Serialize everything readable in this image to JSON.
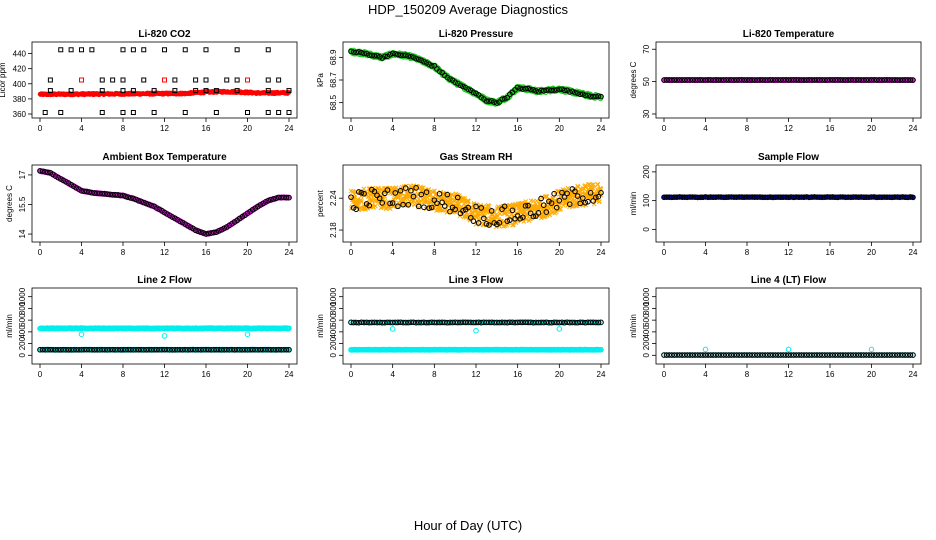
{
  "page": {
    "title": "HDP_150209  Average Diagnostics",
    "xlabel": "Hour of Day (UTC)"
  },
  "colors": {
    "black": "#000000",
    "red": "#ff0000",
    "green": "#22cc22",
    "magenta": "#dd22dd",
    "orange": "#ffaa00",
    "blue": "#0000cc",
    "cyan": "#00eeee"
  },
  "chart_data": [
    {
      "id": "co2",
      "type": "scatter",
      "title": "Li-820 CO2",
      "ylabel": "Licor ppm",
      "xlim": [
        0,
        24
      ],
      "ylim": [
        360,
        450
      ],
      "xticks": [
        0,
        4,
        8,
        12,
        16,
        20,
        24
      ],
      "yticks": [
        360,
        380,
        400,
        420,
        440
      ],
      "ylabels_vertical": false,
      "series": [
        {
          "color": "red",
          "marker": "dot",
          "x": [
            0,
            24
          ],
          "y": [
            386,
            388
          ],
          "dense": true,
          "noise": 1.2,
          "trend": "co2"
        },
        {
          "color": "black",
          "marker": "square",
          "x": [
            2,
            3,
            4,
            5,
            8,
            9,
            10,
            12,
            14,
            16,
            19,
            22
          ],
          "y": [
            445,
            445,
            445,
            445,
            445,
            445,
            445,
            445,
            445,
            445,
            445,
            445
          ]
        },
        {
          "color": "black",
          "marker": "square",
          "x": [
            1,
            4,
            6,
            7,
            8,
            10,
            12,
            13,
            15,
            16,
            18,
            19,
            20,
            22,
            23
          ],
          "y": [
            405,
            405,
            405,
            405,
            405,
            405,
            405,
            405,
            405,
            405,
            405,
            405,
            405,
            405,
            405
          ]
        },
        {
          "color": "black",
          "marker": "square",
          "x": [
            1,
            3,
            6,
            8,
            9,
            11,
            13,
            15,
            16,
            17,
            19,
            22,
            24
          ],
          "y": [
            391,
            391,
            391,
            391,
            391,
            391,
            391,
            391,
            391,
            391,
            391,
            391,
            391
          ]
        },
        {
          "color": "black",
          "marker": "square",
          "x": [
            0.5,
            2,
            6,
            8,
            9,
            11,
            14,
            17,
            20,
            22,
            23,
            24
          ],
          "y": [
            362,
            362,
            362,
            362,
            362,
            362,
            362,
            362,
            362,
            362,
            362,
            362
          ]
        },
        {
          "color": "red",
          "marker": "square",
          "x": [
            4,
            12,
            20
          ],
          "y": [
            405,
            405,
            405
          ]
        }
      ]
    },
    {
      "id": "pressure",
      "type": "scatter",
      "title": "Li-820 Pressure",
      "ylabel": "kPa",
      "xlim": [
        0,
        24
      ],
      "ylim": [
        68.4,
        69.0
      ],
      "xticks": [
        0,
        4,
        8,
        12,
        16,
        20,
        24
      ],
      "yticks": [
        68.5,
        68.7,
        68.9
      ],
      "ylabels_vertical": true,
      "series": [
        {
          "color": "green",
          "marker": "circle",
          "x": [
            0,
            1,
            2,
            3,
            4,
            5,
            6,
            7,
            8,
            9,
            10,
            11,
            12,
            13,
            14,
            15,
            16,
            17,
            18,
            19,
            20,
            21,
            22,
            23,
            24
          ],
          "y": [
            68.95,
            68.94,
            68.92,
            68.9,
            68.93,
            68.92,
            68.9,
            68.86,
            68.82,
            68.74,
            68.68,
            68.63,
            68.58,
            68.52,
            68.5,
            68.55,
            68.63,
            68.62,
            68.6,
            68.61,
            68.62,
            68.6,
            68.58,
            68.56,
            68.55
          ],
          "dense": true,
          "noise": 0.015
        },
        {
          "color": "black",
          "marker": "circle",
          "x": [
            0,
            1,
            2,
            3,
            4,
            5,
            6,
            7,
            8,
            9,
            10,
            11,
            12,
            13,
            14,
            15,
            16,
            17,
            18,
            19,
            20,
            21,
            22,
            23,
            24
          ],
          "y": [
            68.95,
            68.94,
            68.92,
            68.9,
            68.93,
            68.92,
            68.9,
            68.86,
            68.82,
            68.74,
            68.68,
            68.63,
            68.58,
            68.52,
            68.5,
            68.55,
            68.63,
            68.62,
            68.6,
            68.61,
            68.62,
            68.6,
            68.58,
            68.56,
            68.55
          ],
          "dense": true,
          "noise": 0.006,
          "step": 0.25
        }
      ]
    },
    {
      "id": "temp",
      "type": "scatter",
      "title": "Li-820 Temperature",
      "ylabel": "degrees C",
      "xlim": [
        0,
        24
      ],
      "ylim": [
        30,
        72
      ],
      "xticks": [
        0,
        4,
        8,
        12,
        16,
        20,
        24
      ],
      "yticks": [
        30,
        50,
        70
      ],
      "ylabels_vertical": true,
      "series": [
        {
          "color": "magenta",
          "marker": "circle",
          "x": [
            0,
            24
          ],
          "y": [
            51,
            51
          ],
          "dense": true,
          "noise": 0.1
        },
        {
          "color": "black",
          "marker": "circle",
          "x": [
            0,
            24
          ],
          "y": [
            51,
            51
          ],
          "dense": true,
          "noise": 0.05,
          "step": 0.25
        }
      ]
    },
    {
      "id": "ambient",
      "type": "scatter",
      "title": "Ambient Box Temperature",
      "ylabel": "degrees C",
      "xlim": [
        0,
        24
      ],
      "ylim": [
        13.8,
        17.3
      ],
      "xticks": [
        0,
        4,
        8,
        12,
        16,
        20,
        24
      ],
      "yticks": [
        14.0,
        15.5,
        17.0
      ],
      "ylabels_vertical": true,
      "series": [
        {
          "color": "magenta",
          "marker": "circle",
          "x": [
            0,
            1,
            2,
            3,
            4,
            5,
            6,
            7,
            8,
            9,
            10,
            11,
            12,
            13,
            14,
            15,
            16,
            17,
            18,
            19,
            20,
            21,
            22,
            23,
            24
          ],
          "y": [
            17.2,
            17.1,
            16.8,
            16.5,
            16.2,
            16.1,
            16.05,
            16.0,
            15.95,
            15.8,
            15.6,
            15.4,
            15.1,
            14.8,
            14.5,
            14.2,
            14.0,
            14.1,
            14.35,
            14.7,
            15.05,
            15.4,
            15.7,
            15.85,
            15.85
          ],
          "dense": true,
          "noise": 0.015
        },
        {
          "color": "black",
          "marker": "circle",
          "x": [
            0,
            1,
            2,
            3,
            4,
            5,
            6,
            7,
            8,
            9,
            10,
            11,
            12,
            13,
            14,
            15,
            16,
            17,
            18,
            19,
            20,
            21,
            22,
            23,
            24
          ],
          "y": [
            17.2,
            17.1,
            16.8,
            16.5,
            16.2,
            16.1,
            16.05,
            16.0,
            15.95,
            15.8,
            15.6,
            15.4,
            15.1,
            14.8,
            14.5,
            14.2,
            14.0,
            14.1,
            14.35,
            14.7,
            15.05,
            15.4,
            15.7,
            15.85,
            15.85
          ],
          "dense": true,
          "noise": 0.01,
          "step": 0.25
        }
      ]
    },
    {
      "id": "rh",
      "type": "scatter",
      "title": "Gas Stream RH",
      "ylabel": "percent",
      "xlim": [
        0,
        24
      ],
      "ylim": [
        2.165,
        2.295
      ],
      "xticks": [
        0,
        4,
        8,
        12,
        16,
        20,
        24
      ],
      "yticks": [
        2.18,
        2.24
      ],
      "ylabels_vertical": true,
      "series": [
        {
          "color": "orange",
          "marker": "cross",
          "x": [
            0,
            2,
            4,
            6,
            8,
            10,
            12,
            14,
            16,
            18,
            20,
            22,
            24
          ],
          "y": [
            2.235,
            2.24,
            2.24,
            2.245,
            2.235,
            2.23,
            2.21,
            2.205,
            2.21,
            2.22,
            2.235,
            2.245,
            2.25
          ],
          "dense": true,
          "noise": 0.02,
          "step": 0.03
        },
        {
          "color": "black",
          "marker": "circle",
          "x": [
            0,
            2,
            4,
            6,
            8,
            10,
            12,
            14,
            16,
            18,
            20,
            22,
            24
          ],
          "y": [
            2.235,
            2.24,
            2.24,
            2.245,
            2.235,
            2.23,
            2.21,
            2.205,
            2.21,
            2.22,
            2.235,
            2.245,
            2.25
          ],
          "dense": true,
          "noise": 0.018,
          "step": 0.25
        }
      ]
    },
    {
      "id": "sampleflow",
      "type": "scatter",
      "title": "Sample Flow",
      "ylabel": "ml/min",
      "xlim": [
        0,
        24
      ],
      "ylim": [
        -30,
        210
      ],
      "xticks": [
        0,
        4,
        8,
        12,
        16,
        20,
        24
      ],
      "yticks": [
        0,
        100,
        200
      ],
      "ylabels_vertical": true,
      "series": [
        {
          "color": "blue",
          "marker": "dot",
          "x": [
            0,
            24
          ],
          "y": [
            112,
            112
          ],
          "dense": true,
          "noise": 1.5
        },
        {
          "color": "black",
          "marker": "circle",
          "x": [
            0,
            24
          ],
          "y": [
            112,
            112
          ],
          "dense": true,
          "noise": 0.8,
          "step": 0.25
        }
      ]
    },
    {
      "id": "line2",
      "type": "scatter",
      "title": "Line 2 Flow",
      "ylabel": "ml/min",
      "xlim": [
        0,
        24
      ],
      "ylim": [
        -80,
        1080
      ],
      "xticks": [
        0,
        4,
        8,
        12,
        16,
        20,
        24
      ],
      "yticks": [
        0,
        200,
        400,
        600,
        800,
        1000
      ],
      "ylabels_vertical": true,
      "series": [
        {
          "color": "cyan",
          "marker": "circle",
          "x": [
            0,
            24
          ],
          "y": [
            460,
            460
          ],
          "dense": true,
          "noise": 5,
          "step": 0.08
        },
        {
          "color": "cyan",
          "marker": "circle",
          "x": [
            0,
            24
          ],
          "y": [
            95,
            95
          ],
          "dense": true,
          "noise": 3,
          "step": 0.08
        },
        {
          "color": "cyan",
          "marker": "circle",
          "x": [
            4,
            12,
            20
          ],
          "y": [
            360,
            330,
            360
          ]
        },
        {
          "color": "black",
          "marker": "circle",
          "x": [
            0,
            24
          ],
          "y": [
            95,
            95
          ],
          "dense": true,
          "noise": 1,
          "step": 0.25
        }
      ]
    },
    {
      "id": "line3",
      "type": "scatter",
      "title": "Line 3 Flow",
      "ylabel": "ml/min",
      "xlim": [
        0,
        24
      ],
      "ylim": [
        -80,
        1080
      ],
      "xticks": [
        0,
        4,
        8,
        12,
        16,
        20,
        24
      ],
      "yticks": [
        0,
        200,
        400,
        600,
        800,
        1000
      ],
      "ylabels_vertical": true,
      "series": [
        {
          "color": "cyan",
          "marker": "circle",
          "x": [
            0,
            24
          ],
          "y": [
            95,
            95
          ],
          "dense": true,
          "noise": 3,
          "step": 0.08
        },
        {
          "color": "cyan",
          "marker": "circle",
          "x": [
            0,
            24
          ],
          "y": [
            560,
            560
          ],
          "dense": true,
          "noise": 5,
          "step": 0.2
        },
        {
          "color": "cyan",
          "marker": "circle",
          "x": [
            4,
            12,
            20
          ],
          "y": [
            450,
            420,
            450
          ]
        },
        {
          "color": "black",
          "marker": "circle",
          "x": [
            0,
            24
          ],
          "y": [
            560,
            560
          ],
          "dense": true,
          "noise": 4,
          "step": 0.25
        }
      ]
    },
    {
      "id": "line4",
      "type": "scatter",
      "title": "Line 4 (LT) Flow",
      "ylabel": "ml/min",
      "xlim": [
        0,
        24
      ],
      "ylim": [
        -80,
        1080
      ],
      "xticks": [
        0,
        4,
        8,
        12,
        16,
        20,
        24
      ],
      "yticks": [
        0,
        200,
        400,
        600,
        800,
        1000
      ],
      "ylabels_vertical": true,
      "series": [
        {
          "color": "cyan",
          "marker": "circle",
          "x": [
            0,
            24
          ],
          "y": [
            5,
            5
          ],
          "dense": true,
          "noise": 1,
          "step": 0.25
        },
        {
          "color": "cyan",
          "marker": "circle",
          "x": [
            4,
            12,
            20
          ],
          "y": [
            100,
            100,
            100
          ]
        },
        {
          "color": "black",
          "marker": "circle",
          "x": [
            0,
            24
          ],
          "y": [
            5,
            5
          ],
          "dense": true,
          "noise": 0.5,
          "step": 0.25
        }
      ]
    }
  ]
}
